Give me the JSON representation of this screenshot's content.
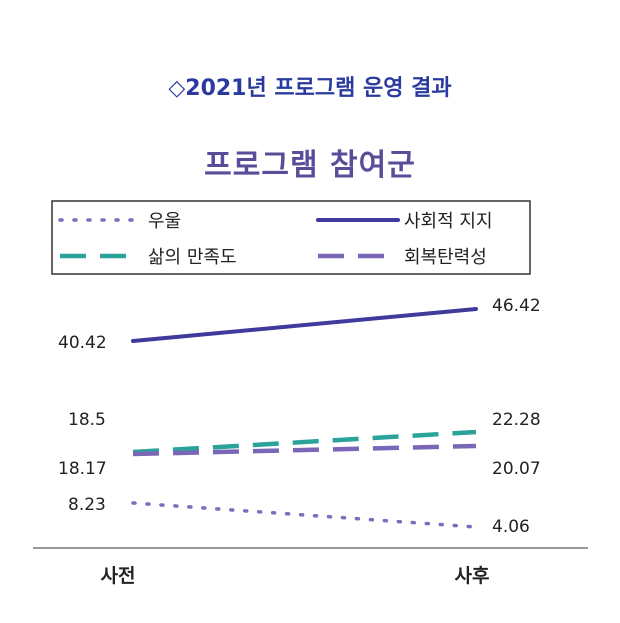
{
  "heading": "◇2021년 프로그램 운영 결과",
  "chart_data": {
    "type": "line",
    "title": "프로그램 참여군",
    "categories": [
      "사전",
      "사후"
    ],
    "legend_position": "top",
    "grid": false,
    "series": [
      {
        "name": "우울",
        "values": [
          8.23,
          4.06
        ],
        "color": "#7a6fbd",
        "style": "dotted"
      },
      {
        "name": "사회적 지지",
        "values": [
          40.42,
          46.42
        ],
        "color": "#3f3a9c",
        "style": "solid"
      },
      {
        "name": "삶의 만족도",
        "values": [
          18.17,
          22.28
        ],
        "color": "#2aa39a",
        "style": "dashed"
      },
      {
        "name": "회복탄력성",
        "values": [
          18.5,
          20.07
        ],
        "color": "#7a67b8",
        "style": "dashed"
      }
    ],
    "value_labels": {
      "left": [
        "40.42",
        "18.5",
        "18.17",
        "8.23"
      ],
      "right": [
        "46.42",
        "22.28",
        "20.07",
        "4.06"
      ]
    }
  }
}
